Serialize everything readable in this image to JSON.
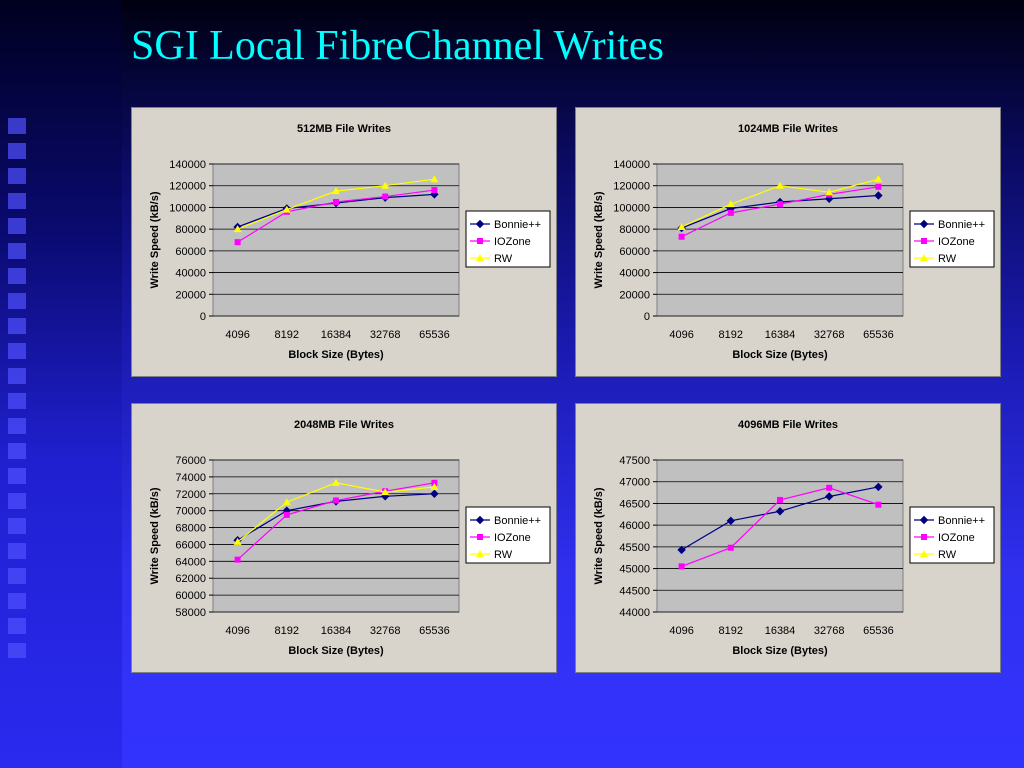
{
  "title": "SGI Local FibreChannel Writes",
  "chart_data": [
    {
      "type": "line",
      "title": "512MB File Writes",
      "xlabel": "Block Size (Bytes)",
      "ylabel": "Write Speed (kB/s)",
      "categories": [
        "4096",
        "8192",
        "16384",
        "32768",
        "65536"
      ],
      "ylim": [
        0,
        140000
      ],
      "yticks": [
        0,
        20000,
        40000,
        60000,
        80000,
        100000,
        120000,
        140000
      ],
      "grid": true,
      "series": [
        {
          "name": "Bonnie++",
          "color": "#000080",
          "marker": "diamond",
          "values": [
            82000,
            99000,
            104000,
            109000,
            112000
          ]
        },
        {
          "name": "IOZone",
          "color": "#ff00ff",
          "marker": "square",
          "values": [
            68000,
            96000,
            105000,
            110000,
            116000
          ]
        },
        {
          "name": "RW",
          "color": "#ffff00",
          "marker": "triangle",
          "values": [
            80000,
            98000,
            115000,
            120000,
            126000
          ]
        }
      ]
    },
    {
      "type": "line",
      "title": "1024MB File Writes",
      "xlabel": "Block Size (Bytes)",
      "ylabel": "Write Speed (kB/s)",
      "categories": [
        "4096",
        "8192",
        "16384",
        "32768",
        "65536"
      ],
      "ylim": [
        0,
        140000
      ],
      "yticks": [
        0,
        20000,
        40000,
        60000,
        80000,
        100000,
        120000,
        140000
      ],
      "grid": true,
      "series": [
        {
          "name": "Bonnie++",
          "color": "#000080",
          "marker": "diamond",
          "values": [
            81000,
            99000,
            105000,
            108000,
            111000
          ]
        },
        {
          "name": "IOZone",
          "color": "#ff00ff",
          "marker": "square",
          "values": [
            73000,
            95000,
            103000,
            112000,
            119000
          ]
        },
        {
          "name": "RW",
          "color": "#ffff00",
          "marker": "triangle",
          "values": [
            82000,
            103000,
            120000,
            114000,
            126000
          ]
        }
      ]
    },
    {
      "type": "line",
      "title": "2048MB File Writes",
      "xlabel": "Block Size (Bytes)",
      "ylabel": "Write Speed (kB/s)",
      "categories": [
        "4096",
        "8192",
        "16384",
        "32768",
        "65536"
      ],
      "ylim": [
        58000,
        76000
      ],
      "yticks": [
        58000,
        60000,
        62000,
        64000,
        66000,
        68000,
        70000,
        72000,
        74000,
        76000
      ],
      "grid": true,
      "series": [
        {
          "name": "Bonnie++",
          "color": "#000080",
          "marker": "diamond",
          "values": [
            66500,
            70000,
            71100,
            71700,
            72000
          ]
        },
        {
          "name": "IOZone",
          "color": "#ff00ff",
          "marker": "square",
          "values": [
            64200,
            69500,
            71200,
            72300,
            73300
          ]
        },
        {
          "name": "RW",
          "color": "#ffff00",
          "marker": "triangle",
          "values": [
            66300,
            71000,
            73300,
            72200,
            72800
          ]
        }
      ]
    },
    {
      "type": "line",
      "title": "4096MB File Writes",
      "xlabel": "Block Size (Bytes)",
      "ylabel": "Write Speed (kB/s)",
      "categories": [
        "4096",
        "8192",
        "16384",
        "32768",
        "65536"
      ],
      "ylim": [
        44000,
        47500
      ],
      "yticks": [
        44000,
        44500,
        45000,
        45500,
        46000,
        46500,
        47000,
        47500
      ],
      "grid": true,
      "series": [
        {
          "name": "Bonnie++",
          "color": "#000080",
          "marker": "diamond",
          "values": [
            45430,
            46100,
            46320,
            46660,
            46880
          ]
        },
        {
          "name": "IOZone",
          "color": "#ff00ff",
          "marker": "square",
          "values": [
            45050,
            45480,
            46580,
            46860,
            46470
          ]
        },
        {
          "name": "RW",
          "color": "#ffff00",
          "marker": "triangle",
          "values": [
            null,
            null,
            null,
            null,
            null
          ]
        }
      ]
    }
  ]
}
